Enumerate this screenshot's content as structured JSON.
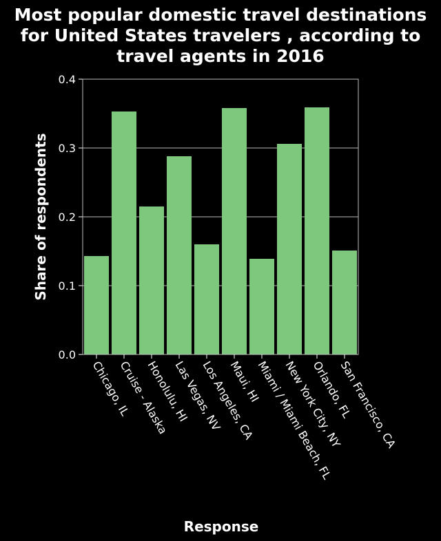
{
  "colors": {
    "background": "#000000",
    "bar": "#7ec87e",
    "grid": "#bdbdbd",
    "text": "#ffffff"
  },
  "chart_data": {
    "type": "bar",
    "title_lines": [
      "Most popular domestic travel destinations",
      "for United States travelers , according to",
      "travel agents in 2016"
    ],
    "xlabel": "Response",
    "ylabel": "Share of respondents",
    "ylim": [
      0,
      0.4
    ],
    "yticks": [
      "0.0",
      "0.1",
      "0.2",
      "0.3",
      "0.4"
    ],
    "grid": true,
    "categories": [
      "Chicago, IL",
      "Cruise - Alaska",
      "Honolulu, HI",
      "Las Vegas, NV",
      "Los Angeles, CA",
      "Maui, HI",
      "Miami / Miami Beach, FL",
      "New York City, NY",
      "Orlando, FL",
      "San Francisco, CA"
    ],
    "values": [
      0.143,
      0.353,
      0.215,
      0.288,
      0.16,
      0.358,
      0.139,
      0.306,
      0.359,
      0.151
    ]
  }
}
